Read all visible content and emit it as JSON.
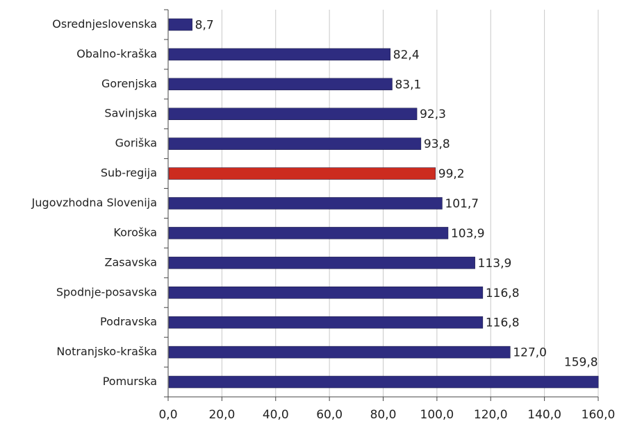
{
  "chart_data": {
    "type": "bar",
    "orientation": "horizontal",
    "categories": [
      "Osrednjeslovenska",
      "Obalno-kraška",
      "Gorenjska",
      "Savinjska",
      "Goriška",
      "Sub-regija",
      "Jugovzhodna Slovenija",
      "Koroška",
      "Zasavska",
      "Spodnje-posavska",
      "Podravska",
      "Notranjsko-kraška",
      "Pomurska"
    ],
    "values": [
      8.7,
      82.4,
      83.1,
      92.3,
      93.8,
      99.2,
      101.7,
      103.9,
      113.9,
      116.8,
      116.8,
      127.0,
      159.8
    ],
    "value_labels": [
      "8,7",
      "82,4",
      "83,1",
      "92,3",
      "93,8",
      "99,2",
      "101,7",
      "103,9",
      "113,9",
      "116,8",
      "116,8",
      "127,0",
      "159,8"
    ],
    "colors": [
      "#2e2c80",
      "#2e2c80",
      "#2e2c80",
      "#2e2c80",
      "#2e2c80",
      "#cc2b1f",
      "#2e2c80",
      "#2e2c80",
      "#2e2c80",
      "#2e2c80",
      "#2e2c80",
      "#2e2c80",
      "#2e2c80"
    ],
    "xlim": [
      0,
      160
    ],
    "xticks": [
      {
        "value": 0,
        "label": "0,0"
      },
      {
        "value": 20,
        "label": "20,0"
      },
      {
        "value": 40,
        "label": "40,0"
      },
      {
        "value": 60,
        "label": "60,0"
      },
      {
        "value": 80,
        "label": "80,0"
      },
      {
        "value": 100,
        "label": "100,0"
      },
      {
        "value": 120,
        "label": "120,0"
      },
      {
        "value": 140,
        "label": "140,0"
      },
      {
        "value": 160,
        "label": "160,0"
      }
    ],
    "grid": true
  }
}
